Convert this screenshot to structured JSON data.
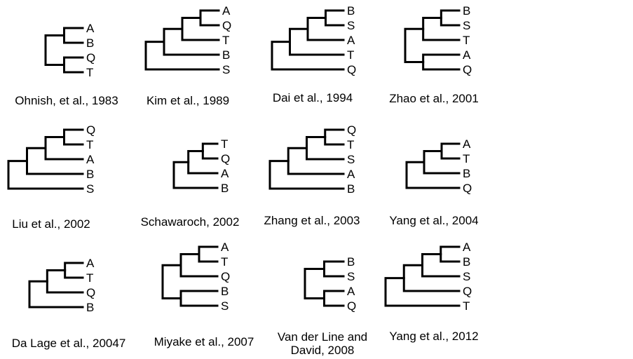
{
  "trees": [
    {
      "caption": [
        "Ohnish, et al., 1983"
      ],
      "leaves": [
        "A",
        "B",
        "Q",
        "T"
      ],
      "topology": [
        [
          "A",
          "B"
        ],
        [
          "Q",
          "T"
        ]
      ]
    },
    {
      "caption": [
        "Kim et al., 1989"
      ],
      "leaves": [
        "A",
        "Q",
        "T",
        "B",
        "S"
      ],
      "topology": [
        [
          [
            [
              "A",
              "Q"
            ],
            "T"
          ],
          "B"
        ],
        "S"
      ]
    },
    {
      "caption": [
        "Dai et al., 1994"
      ],
      "leaves": [
        "B",
        "S",
        "A",
        "T",
        "Q"
      ],
      "topology": [
        [
          [
            [
              "B",
              "S"
            ],
            "A"
          ],
          "T"
        ],
        "Q"
      ]
    },
    {
      "caption": [
        "Zhao et al., 2001"
      ],
      "leaves": [
        "B",
        "S",
        "T",
        "A",
        "Q"
      ],
      "topology": [
        [
          [
            "B",
            "S"
          ],
          "T"
        ],
        [
          "A",
          "Q"
        ]
      ]
    },
    {
      "caption": [
        "Liu et al., 2002"
      ],
      "leaves": [
        "Q",
        "T",
        "A",
        "B",
        "S"
      ],
      "topology": [
        [
          [
            [
              "Q",
              "T"
            ],
            "A"
          ],
          "B"
        ],
        "S"
      ]
    },
    {
      "caption": [
        "Schawaroch, 2002"
      ],
      "leaves": [
        "T",
        "Q",
        "A",
        "B"
      ],
      "topology": [
        [
          [
            "T",
            "Q"
          ],
          "A"
        ],
        "B"
      ]
    },
    {
      "caption": [
        "Zhang et al., 2003"
      ],
      "leaves": [
        "Q",
        "T",
        "S",
        "A",
        "B"
      ],
      "topology": [
        [
          [
            [
              "Q",
              "T"
            ],
            "S"
          ],
          "A"
        ],
        "B"
      ]
    },
    {
      "caption": [
        "Yang et al., 2004"
      ],
      "leaves": [
        "A",
        "T",
        "B",
        "Q"
      ],
      "topology": [
        [
          [
            "A",
            "T"
          ],
          "B"
        ],
        "Q"
      ]
    },
    {
      "caption": [
        "Da Lage et al., 20047"
      ],
      "leaves": [
        "A",
        "T",
        "Q",
        "B"
      ],
      "topology": [
        [
          [
            "A",
            "T"
          ],
          "Q"
        ],
        "B"
      ]
    },
    {
      "caption": [
        "Miyake et al., 2007"
      ],
      "leaves": [
        "A",
        "T",
        "Q",
        "B",
        "S"
      ],
      "topology": [
        [
          [
            "A",
            "T"
          ],
          "Q"
        ],
        [
          "B",
          "S"
        ]
      ]
    },
    {
      "caption": [
        "Van der Line and",
        "David, 2008"
      ],
      "leaves": [
        "B",
        "S",
        "A",
        "Q"
      ],
      "topology": [
        [
          "B",
          "S"
        ],
        [
          "A",
          "Q"
        ]
      ]
    },
    {
      "caption": [
        "Yang et al., 2012"
      ],
      "leaves": [
        "A",
        "B",
        "S",
        "Q",
        "T"
      ],
      "topology": [
        [
          [
            [
              "A",
              "B"
            ],
            "S"
          ],
          "Q"
        ],
        "T"
      ]
    }
  ]
}
